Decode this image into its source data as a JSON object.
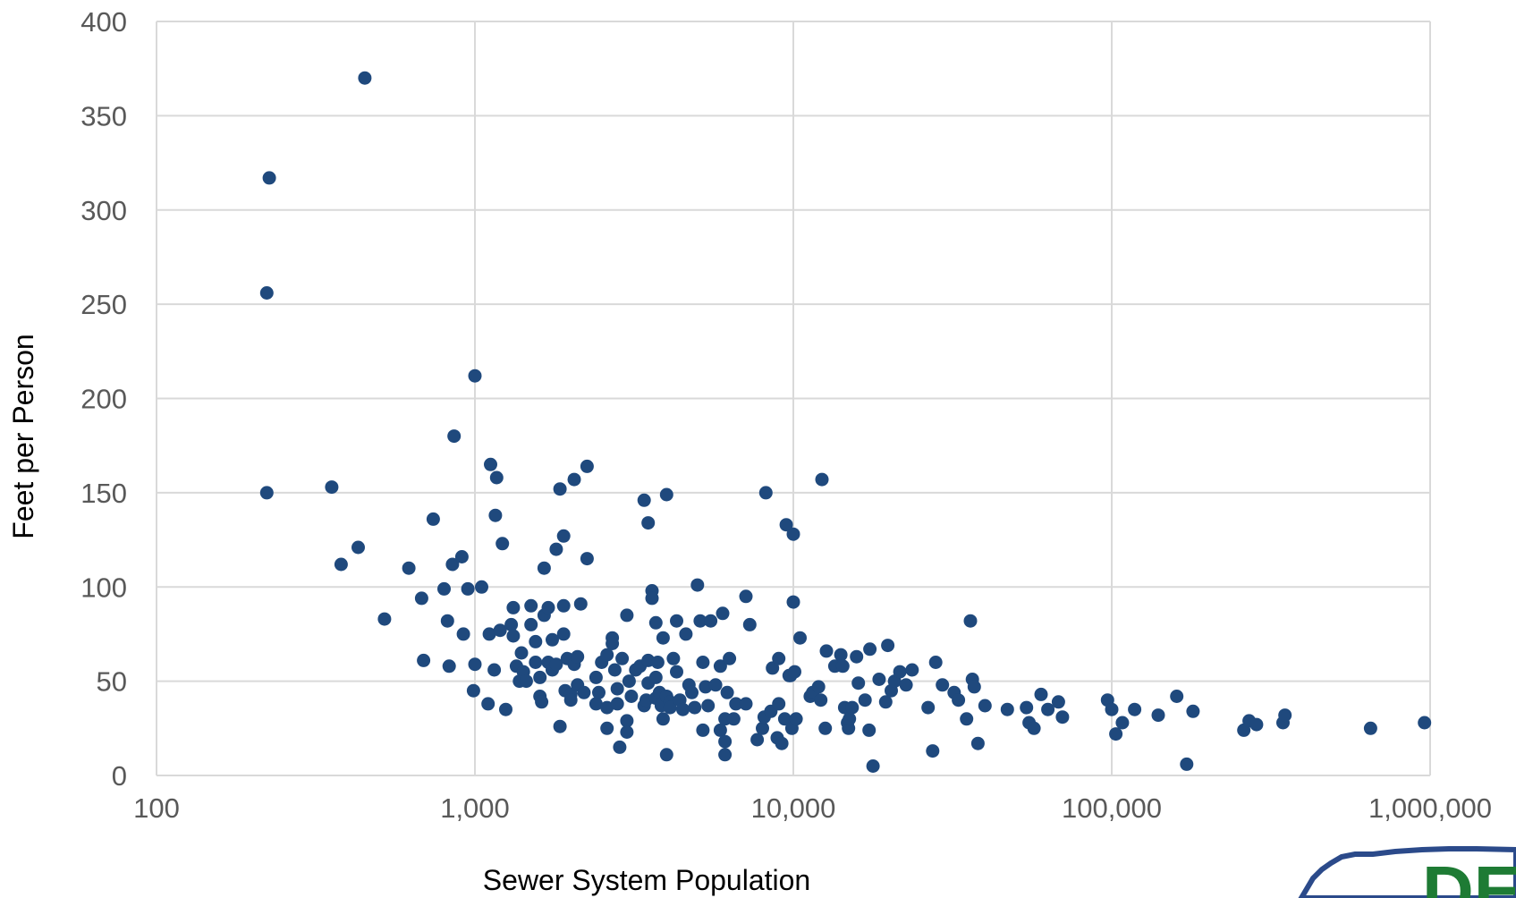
{
  "colors": {
    "series": "#1f497d",
    "grid": "#d9d9d9",
    "tick_text": "#595959",
    "logo_blue": "#2b4a8a",
    "logo_green": "#1e7b34"
  },
  "logo": {
    "text": "DEQ"
  },
  "chart_data": {
    "type": "scatter",
    "xlabel": "Sewer System Population",
    "ylabel": "Feet per Person",
    "xscale": "log",
    "xlim": [
      100,
      1000000
    ],
    "ylim": [
      0,
      400
    ],
    "grid": true,
    "x_ticks": [
      100,
      1000,
      10000,
      100000,
      1000000
    ],
    "x_tick_labels": [
      "100",
      "1,000",
      "10,000",
      "100,000",
      "1,000,000"
    ],
    "y_ticks": [
      0,
      50,
      100,
      150,
      200,
      250,
      300,
      350,
      400
    ],
    "y_tick_labels": [
      "0",
      "50",
      "100",
      "150",
      "200",
      "250",
      "300",
      "350",
      "400"
    ],
    "points": [
      [
        226,
        317
      ],
      [
        222,
        256
      ],
      [
        222,
        150
      ],
      [
        451,
        370
      ],
      [
        355,
        153
      ],
      [
        380,
        112
      ],
      [
        430,
        121
      ],
      [
        520,
        83
      ],
      [
        620,
        110
      ],
      [
        680,
        94
      ],
      [
        690,
        61
      ],
      [
        740,
        136
      ],
      [
        800,
        99
      ],
      [
        830,
        58
      ],
      [
        820,
        82
      ],
      [
        850,
        112
      ],
      [
        860,
        180
      ],
      [
        910,
        116
      ],
      [
        920,
        75
      ],
      [
        950,
        99
      ],
      [
        990,
        45
      ],
      [
        1000,
        59
      ],
      [
        1000,
        212
      ],
      [
        1050,
        100
      ],
      [
        1100,
        38
      ],
      [
        1110,
        75
      ],
      [
        1120,
        165
      ],
      [
        1150,
        56
      ],
      [
        1160,
        138
      ],
      [
        1170,
        158
      ],
      [
        1200,
        77
      ],
      [
        1220,
        123
      ],
      [
        1250,
        35
      ],
      [
        1300,
        80
      ],
      [
        1320,
        89
      ],
      [
        1320,
        74
      ],
      [
        1350,
        58
      ],
      [
        1380,
        50
      ],
      [
        1400,
        65
      ],
      [
        1420,
        55
      ],
      [
        1450,
        50
      ],
      [
        1500,
        90
      ],
      [
        1500,
        80
      ],
      [
        1550,
        71
      ],
      [
        1550,
        60
      ],
      [
        1600,
        52
      ],
      [
        1600,
        42
      ],
      [
        1620,
        39
      ],
      [
        1650,
        110
      ],
      [
        1650,
        85
      ],
      [
        1700,
        89
      ],
      [
        1700,
        60
      ],
      [
        1750,
        56
      ],
      [
        1750,
        72
      ],
      [
        1800,
        120
      ],
      [
        1800,
        59
      ],
      [
        1850,
        152
      ],
      [
        1850,
        26
      ],
      [
        1900,
        127
      ],
      [
        1900,
        90
      ],
      [
        1900,
        75
      ],
      [
        1920,
        45
      ],
      [
        1950,
        62
      ],
      [
        2000,
        43
      ],
      [
        2000,
        40
      ],
      [
        2050,
        157
      ],
      [
        2050,
        59
      ],
      [
        2100,
        63
      ],
      [
        2100,
        48
      ],
      [
        2150,
        91
      ],
      [
        2200,
        44
      ],
      [
        2250,
        115
      ],
      [
        2250,
        164
      ],
      [
        2400,
        52
      ],
      [
        2400,
        38
      ],
      [
        2450,
        44
      ],
      [
        2500,
        60
      ],
      [
        2600,
        64
      ],
      [
        2600,
        36
      ],
      [
        2600,
        25
      ],
      [
        2700,
        73
      ],
      [
        2700,
        70
      ],
      [
        2750,
        56
      ],
      [
        2800,
        46
      ],
      [
        2800,
        38
      ],
      [
        2850,
        15
      ],
      [
        2900,
        62
      ],
      [
        3000,
        29
      ],
      [
        3000,
        23
      ],
      [
        3000,
        85
      ],
      [
        3050,
        50
      ],
      [
        3100,
        42
      ],
      [
        3200,
        56
      ],
      [
        3300,
        58
      ],
      [
        3400,
        146
      ],
      [
        3400,
        37
      ],
      [
        3450,
        40
      ],
      [
        3500,
        134
      ],
      [
        3500,
        61
      ],
      [
        3500,
        49
      ],
      [
        3600,
        98
      ],
      [
        3600,
        94
      ],
      [
        3700,
        81
      ],
      [
        3700,
        52
      ],
      [
        3700,
        41
      ],
      [
        3750,
        60
      ],
      [
        3800,
        44
      ],
      [
        3850,
        37
      ],
      [
        3900,
        73
      ],
      [
        3900,
        30
      ],
      [
        4000,
        149
      ],
      [
        4000,
        11
      ],
      [
        4000,
        42
      ],
      [
        4100,
        39
      ],
      [
        4100,
        36
      ],
      [
        4200,
        62
      ],
      [
        4300,
        82
      ],
      [
        4300,
        55
      ],
      [
        4400,
        40
      ],
      [
        4500,
        35
      ],
      [
        4600,
        75
      ],
      [
        4700,
        48
      ],
      [
        4800,
        44
      ],
      [
        4900,
        36
      ],
      [
        5000,
        101
      ],
      [
        5100,
        82
      ],
      [
        5200,
        60
      ],
      [
        5200,
        24
      ],
      [
        5300,
        47
      ],
      [
        5400,
        37
      ],
      [
        5500,
        82
      ],
      [
        5700,
        48
      ],
      [
        5900,
        58
      ],
      [
        5900,
        24
      ],
      [
        6000,
        86
      ],
      [
        6100,
        30
      ],
      [
        6100,
        18
      ],
      [
        6100,
        11
      ],
      [
        6200,
        44
      ],
      [
        6300,
        62
      ],
      [
        6500,
        30
      ],
      [
        6600,
        38
      ],
      [
        7100,
        95
      ],
      [
        7100,
        38
      ],
      [
        7300,
        80
      ],
      [
        7700,
        19
      ],
      [
        8000,
        25
      ],
      [
        8100,
        31
      ],
      [
        8200,
        150
      ],
      [
        8500,
        34
      ],
      [
        8600,
        57
      ],
      [
        8900,
        20
      ],
      [
        9000,
        62
      ],
      [
        9000,
        38
      ],
      [
        9200,
        17
      ],
      [
        9400,
        30
      ],
      [
        9500,
        133
      ],
      [
        9700,
        53
      ],
      [
        9800,
        53
      ],
      [
        9900,
        25
      ],
      [
        10000,
        128
      ],
      [
        10000,
        92
      ],
      [
        10100,
        55
      ],
      [
        10200,
        30
      ],
      [
        10500,
        73
      ],
      [
        11300,
        42
      ],
      [
        11500,
        44
      ],
      [
        12000,
        47
      ],
      [
        12200,
        40
      ],
      [
        12300,
        157
      ],
      [
        12600,
        25
      ],
      [
        12700,
        66
      ],
      [
        13500,
        58
      ],
      [
        14100,
        64
      ],
      [
        14300,
        58
      ],
      [
        14500,
        36
      ],
      [
        14800,
        28
      ],
      [
        14900,
        25
      ],
      [
        15000,
        30
      ],
      [
        15300,
        36
      ],
      [
        15800,
        63
      ],
      [
        16000,
        49
      ],
      [
        16800,
        40
      ],
      [
        17300,
        24
      ],
      [
        17400,
        67
      ],
      [
        17800,
        5
      ],
      [
        18600,
        51
      ],
      [
        19500,
        39
      ],
      [
        19800,
        69
      ],
      [
        20300,
        45
      ],
      [
        20800,
        50
      ],
      [
        21600,
        55
      ],
      [
        22600,
        48
      ],
      [
        23600,
        56
      ],
      [
        26500,
        36
      ],
      [
        27400,
        13
      ],
      [
        28000,
        60
      ],
      [
        29400,
        48
      ],
      [
        32000,
        44
      ],
      [
        33000,
        40
      ],
      [
        35000,
        30
      ],
      [
        36000,
        82
      ],
      [
        36500,
        51
      ],
      [
        37000,
        47
      ],
      [
        38000,
        17
      ],
      [
        40000,
        37
      ],
      [
        47000,
        35
      ],
      [
        54000,
        36
      ],
      [
        55000,
        28
      ],
      [
        57000,
        25
      ],
      [
        60000,
        43
      ],
      [
        63000,
        35
      ],
      [
        68000,
        39
      ],
      [
        70000,
        31
      ],
      [
        97000,
        40
      ],
      [
        100000,
        35
      ],
      [
        103000,
        22
      ],
      [
        108000,
        28
      ],
      [
        118000,
        35
      ],
      [
        140000,
        32
      ],
      [
        160000,
        42
      ],
      [
        172000,
        6
      ],
      [
        180000,
        34
      ],
      [
        260000,
        24
      ],
      [
        270000,
        29
      ],
      [
        285000,
        27
      ],
      [
        345000,
        28
      ],
      [
        350000,
        32
      ],
      [
        650000,
        25
      ],
      [
        960000,
        28
      ]
    ]
  }
}
